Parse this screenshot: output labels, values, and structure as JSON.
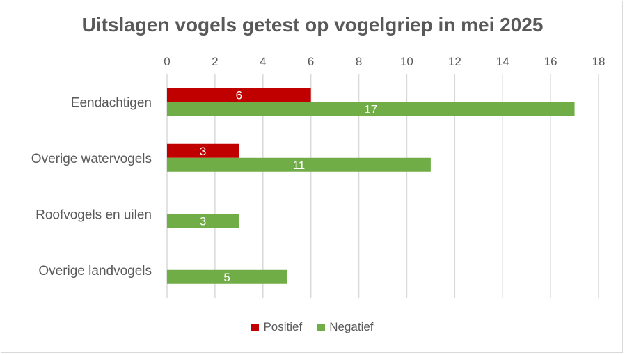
{
  "chart_data": {
    "type": "bar",
    "orientation": "horizontal",
    "title": "Uitslagen vogels getest op vogelgriep in mei 2025",
    "categories": [
      "Eendachtigen",
      "Overige watervogels",
      "Roofvogels en uilen",
      "Overige landvogels"
    ],
    "series": [
      {
        "name": "Positief",
        "color": "#c00000",
        "values": [
          6,
          3,
          0,
          0
        ]
      },
      {
        "name": "Negatief",
        "color": "#70ad47",
        "values": [
          17,
          11,
          3,
          5
        ]
      }
    ],
    "xlim": [
      0,
      18
    ],
    "xticks": [
      0,
      2,
      4,
      6,
      8,
      10,
      12,
      14,
      16,
      18
    ],
    "xaxis_position": "top",
    "grid": true,
    "legend": "bottom"
  }
}
